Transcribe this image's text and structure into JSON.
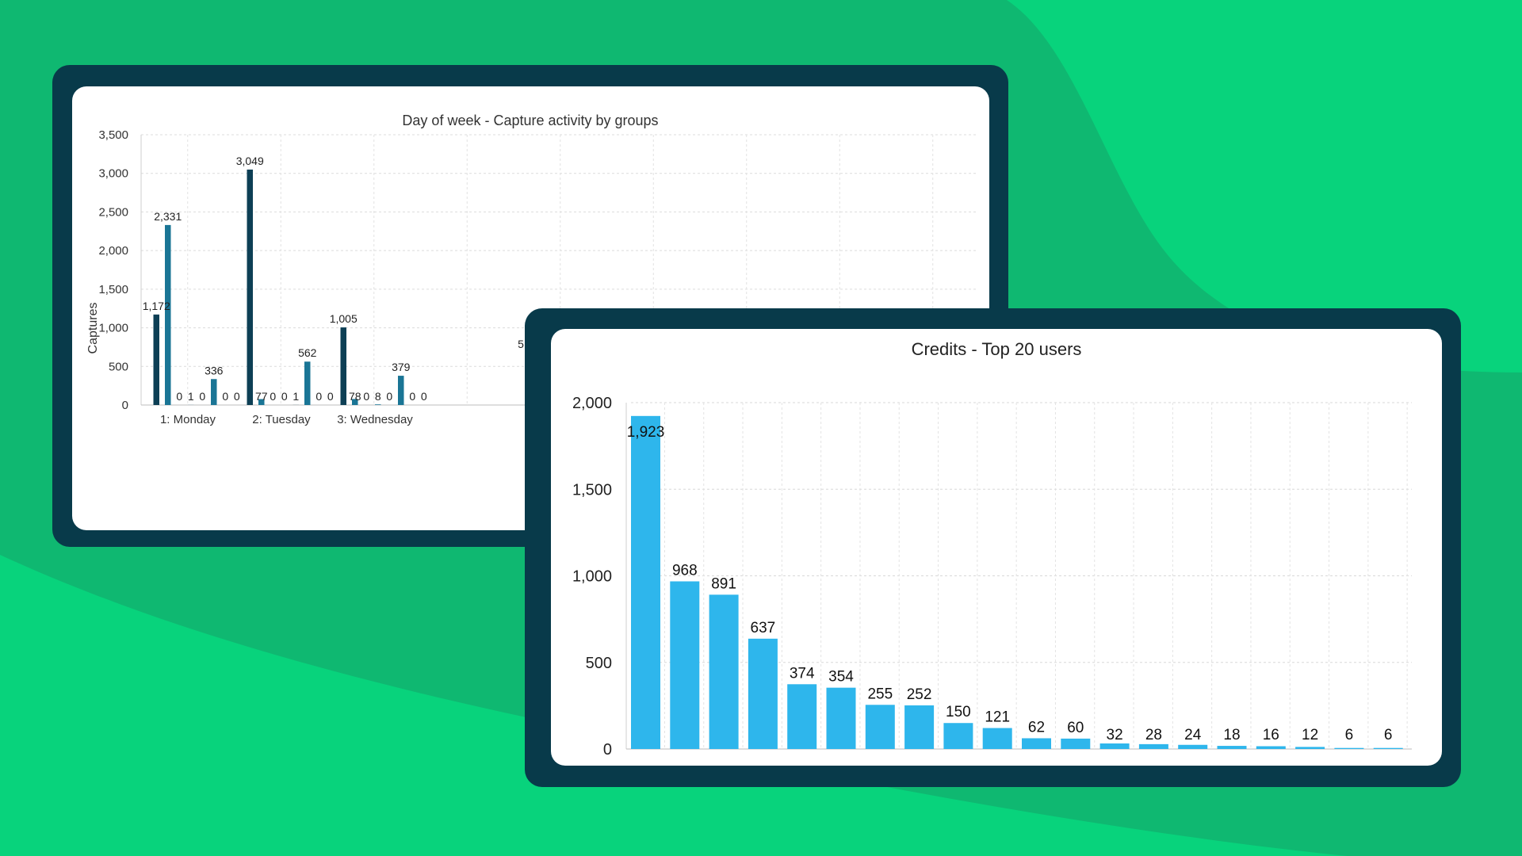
{
  "colors": {
    "background": "#0fb871",
    "background_light": "#08d37c",
    "frame": "#083a4a",
    "series_dark": "#0d3f55",
    "series_mid": "#1a7595",
    "credits_bar": "#2eb6ec"
  },
  "chart_data": [
    {
      "type": "bar",
      "title": "Day of week - Capture activity by groups",
      "ylabel": "Captures",
      "xlabel": "",
      "ylim": [
        0,
        3500
      ],
      "yticks": [
        "0",
        "500",
        "1,000",
        "1,500",
        "2,000",
        "2,500",
        "3,000",
        "3,500"
      ],
      "grid": true,
      "categories": [
        "1: Monday",
        "2: Tuesday",
        "3: Wednesday"
      ],
      "groups": [
        {
          "category": "1: Monday",
          "bars": [
            {
              "value": 1172,
              "label": "1,172",
              "series": 0
            },
            {
              "value": 2331,
              "label": "2,331",
              "series": 1
            },
            {
              "value": 0,
              "label": "0",
              "series": 0
            },
            {
              "value": 1,
              "label": "1",
              "series": 1
            },
            {
              "value": 0,
              "label": "0",
              "series": 0
            },
            {
              "value": 336,
              "label": "336",
              "series": 1
            },
            {
              "value": 0,
              "label": "0",
              "series": 0
            },
            {
              "value": 0,
              "label": "0",
              "series": 1
            }
          ]
        },
        {
          "category": "2: Tuesday",
          "bars": [
            {
              "value": 3049,
              "label": "3,049",
              "series": 0
            },
            {
              "value": 77,
              "label": "77",
              "series": 1
            },
            {
              "value": 0,
              "label": "0",
              "series": 0
            },
            {
              "value": 0,
              "label": "0",
              "series": 1
            },
            {
              "value": 1,
              "label": "1",
              "series": 0
            },
            {
              "value": 562,
              "label": "562",
              "series": 1
            },
            {
              "value": 0,
              "label": "0",
              "series": 0
            },
            {
              "value": 0,
              "label": "0",
              "series": 1
            }
          ]
        },
        {
          "category": "3: Wednesday",
          "bars": [
            {
              "value": 1005,
              "label": "1,005",
              "series": 0
            },
            {
              "value": 78,
              "label": "78",
              "series": 1
            },
            {
              "value": 0,
              "label": "0",
              "series": 0
            },
            {
              "value": 8,
              "label": "8",
              "series": 1
            },
            {
              "value": 0,
              "label": "0",
              "series": 0
            },
            {
              "value": 379,
              "label": "379",
              "series": 1
            },
            {
              "value": 0,
              "label": "0",
              "series": 0
            },
            {
              "value": 0,
              "label": "0",
              "series": 1
            }
          ]
        }
      ],
      "partial_label": "5"
    },
    {
      "type": "bar",
      "title": "Credits - Top 20 users",
      "ylim": [
        0,
        2000
      ],
      "yticks": [
        "0",
        "500",
        "1,000",
        "1,500",
        "2,000"
      ],
      "grid": true,
      "values": [
        1923,
        968,
        891,
        637,
        374,
        354,
        255,
        252,
        150,
        121,
        62,
        60,
        32,
        28,
        24,
        18,
        16,
        12,
        6,
        6
      ],
      "labels": [
        "1,923",
        "968",
        "891",
        "637",
        "374",
        "354",
        "255",
        "252",
        "150",
        "121",
        "62",
        "60",
        "32",
        "28",
        "24",
        "18",
        "16",
        "12",
        "6",
        "6"
      ]
    }
  ]
}
